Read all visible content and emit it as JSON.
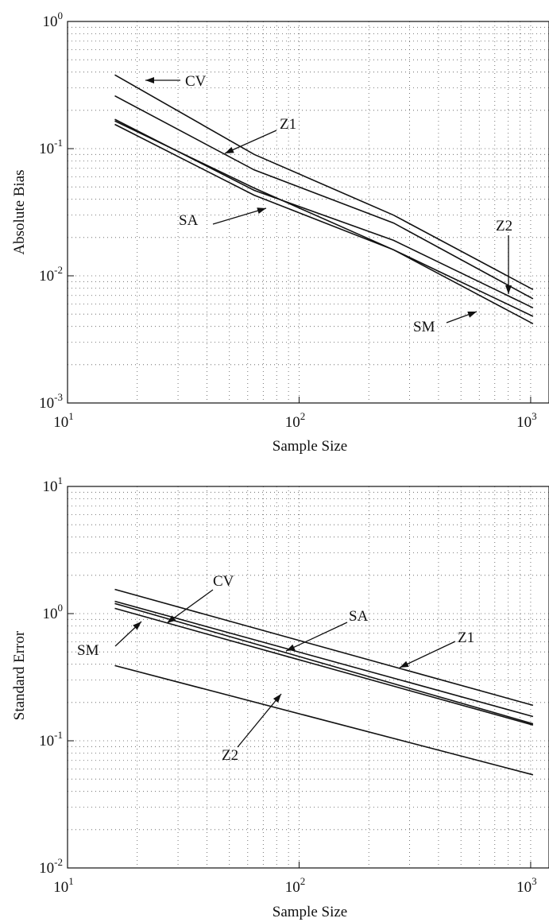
{
  "chart_data": [
    {
      "type": "line",
      "title": "",
      "xlabel": "Sample Size",
      "ylabel": "Absolute Bias",
      "xscale": "log",
      "yscale": "log",
      "xlim": [
        10,
        1200
      ],
      "ylim": [
        0.001,
        1
      ],
      "grid": true,
      "x_ticks": [
        {
          "base": "10",
          "exp": "1"
        },
        {
          "base": "10",
          "exp": "2"
        },
        {
          "base": "10",
          "exp": "3"
        }
      ],
      "y_ticks": [
        {
          "base": "10",
          "exp": "0"
        },
        {
          "base": "10",
          "exp": "-1"
        },
        {
          "base": "10",
          "exp": "-2"
        },
        {
          "base": "10",
          "exp": "-3"
        }
      ],
      "x": [
        16,
        64,
        256,
        1024
      ],
      "series": [
        {
          "name": "CV",
          "values": [
            0.38,
            0.09,
            0.03,
            0.0078
          ]
        },
        {
          "name": "Z1",
          "values": [
            0.26,
            0.068,
            0.026,
            0.0066
          ]
        },
        {
          "name": "Z2",
          "values": [
            0.17,
            0.047,
            0.019,
            0.0056
          ]
        },
        {
          "name": "SA",
          "values": [
            0.165,
            0.049,
            0.016,
            0.0048
          ]
        },
        {
          "name": "SM",
          "values": [
            0.155,
            0.043,
            0.016,
            0.0042
          ]
        }
      ],
      "annotations": [
        {
          "text": "CV",
          "series": "CV"
        },
        {
          "text": "Z1",
          "series": "Z1"
        },
        {
          "text": "SA",
          "series": "SA"
        },
        {
          "text": "Z2",
          "series": "Z2"
        },
        {
          "text": "SM",
          "series": "SM"
        }
      ]
    },
    {
      "type": "line",
      "title": "",
      "xlabel": "Sample Size",
      "ylabel": "Standard Error",
      "xscale": "log",
      "yscale": "log",
      "xlim": [
        10,
        1200
      ],
      "ylim": [
        0.01,
        10
      ],
      "grid": true,
      "x_ticks": [
        {
          "base": "10",
          "exp": "1"
        },
        {
          "base": "10",
          "exp": "2"
        },
        {
          "base": "10",
          "exp": "3"
        }
      ],
      "y_ticks": [
        {
          "base": "10",
          "exp": "1"
        },
        {
          "base": "10",
          "exp": "0"
        },
        {
          "base": "10",
          "exp": "-1"
        },
        {
          "base": "10",
          "exp": "-2"
        }
      ],
      "x": [
        16,
        1024
      ],
      "series": [
        {
          "name": "Z1",
          "values": [
            1.55,
            0.19
          ]
        },
        {
          "name": "SA",
          "values": [
            1.25,
            0.155
          ]
        },
        {
          "name": "CV",
          "values": [
            1.2,
            0.136
          ]
        },
        {
          "name": "SM",
          "values": [
            1.1,
            0.133
          ]
        },
        {
          "name": "Z2",
          "values": [
            0.39,
            0.054
          ]
        }
      ],
      "annotations": [
        {
          "text": "CV",
          "series": "CV"
        },
        {
          "text": "SM",
          "series": "SM"
        },
        {
          "text": "SA",
          "series": "SA"
        },
        {
          "text": "Z1",
          "series": "Z1"
        },
        {
          "text": "Z2",
          "series": "Z2"
        }
      ]
    }
  ]
}
